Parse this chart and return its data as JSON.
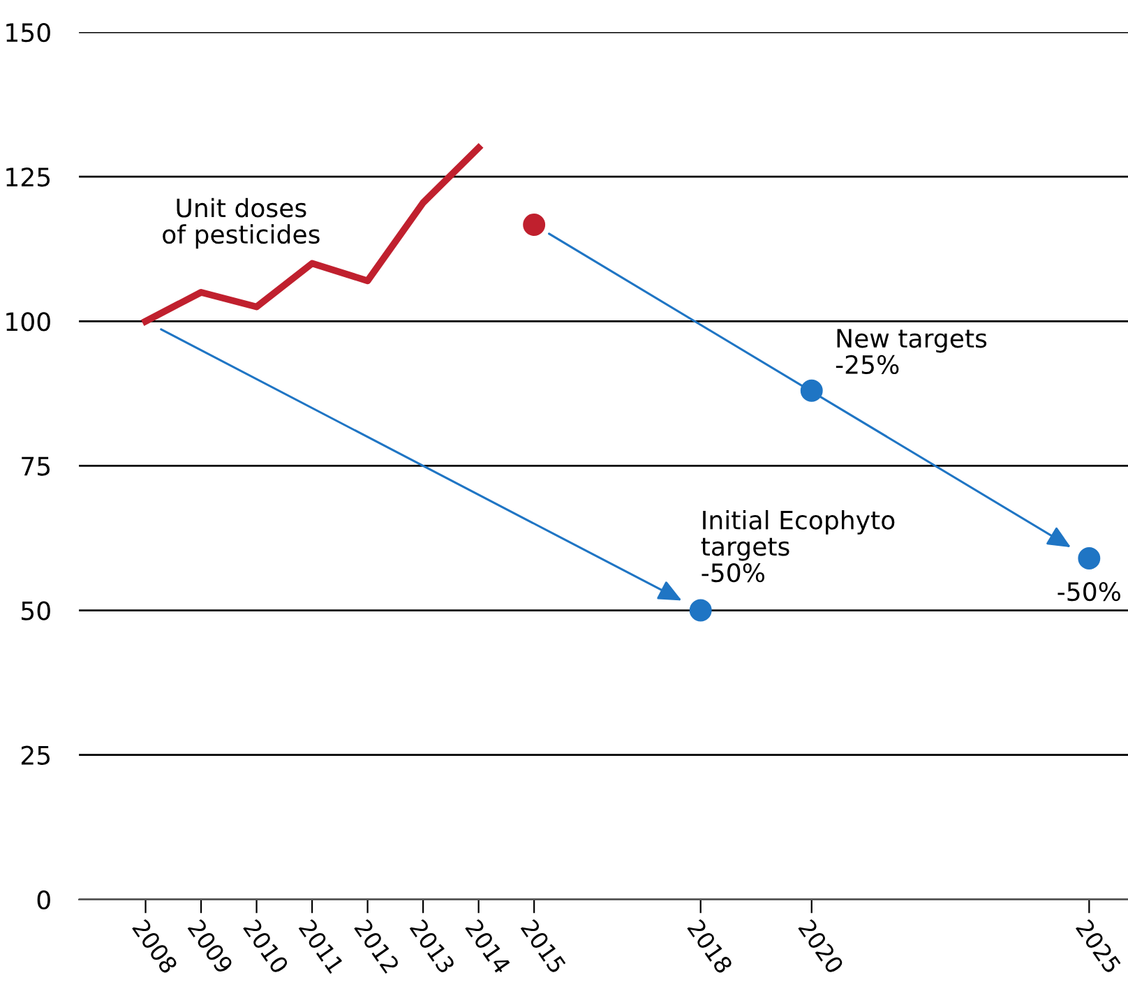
{
  "chart_data": {
    "type": "line",
    "series": [
      {
        "color": "#c0202e",
        "x": [
          2008,
          2009,
          2010,
          2011,
          2012,
          2013,
          2014
        ],
        "values": [
          100,
          105,
          102.5,
          110,
          107,
          120.5,
          130
        ]
      },
      {
        "type": "scatter",
        "marker": "circle",
        "color": "#c0202e",
        "x": [
          2015
        ],
        "values": [
          116.7
        ]
      },
      {
        "type": "scatter",
        "marker": "circle",
        "color": "#1f75c4",
        "x": [
          2018,
          2020,
          2025
        ],
        "values": [
          50,
          88,
          59
        ]
      }
    ],
    "annotations": [
      {
        "text": "Unit doses\nof pesticides",
        "x": 2010,
        "y": 102.5
      },
      {
        "text": "New targets\n-25%",
        "x": 2020,
        "y": 88
      },
      {
        "text": "Initial Ecophyto\ntargets\n-50%",
        "x": 2018,
        "y": 50
      },
      {
        "text": "-50%",
        "x": 2025,
        "y": 59
      }
    ],
    "xlim": [
      2006.8,
      2025.7
    ],
    "xticks": [
      2008,
      2009,
      2010,
      2011,
      2012,
      2013,
      2014,
      2015,
      2018,
      2020,
      2025
    ],
    "ylim": [
      0,
      150
    ],
    "yticks": [
      0,
      25,
      50,
      75,
      100,
      125,
      150
    ],
    "grid": "y"
  }
}
